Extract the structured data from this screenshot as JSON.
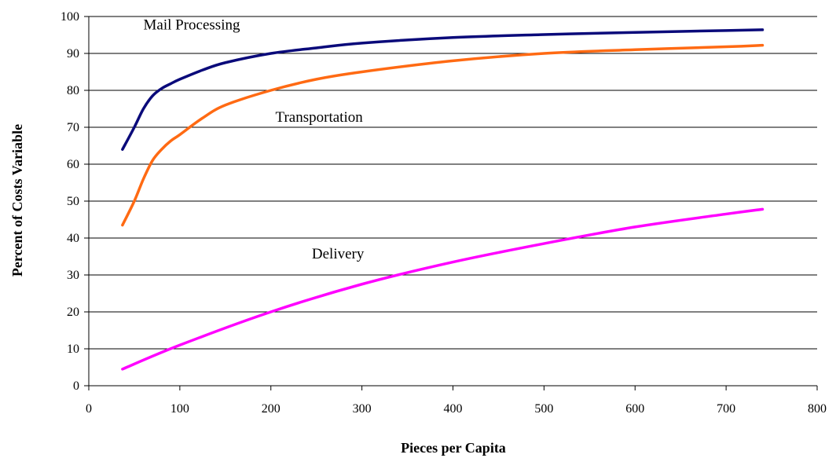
{
  "chart_data": {
    "type": "line",
    "title": "",
    "xlabel": "Pieces per Capita",
    "ylabel": "Percent of Costs Variable",
    "xlim": [
      0,
      800
    ],
    "ylim": [
      0,
      100
    ],
    "xticks": [
      0,
      100,
      200,
      300,
      400,
      500,
      600,
      700,
      800
    ],
    "yticks": [
      0,
      10,
      20,
      30,
      40,
      50,
      60,
      70,
      80,
      90,
      100
    ],
    "grid": "horizontal",
    "legend": "none",
    "series": [
      {
        "name": "Mail Processing",
        "color": "#0a0a7a",
        "x": [
          37,
          50,
          60,
          70,
          80,
          90,
          100,
          125,
          150,
          200,
          250,
          300,
          400,
          500,
          600,
          700,
          740
        ],
        "y": [
          64,
          70,
          75,
          78.5,
          80.5,
          81.8,
          83,
          85.5,
          87.5,
          90,
          91.5,
          92.8,
          94.3,
          95.1,
          95.7,
          96.2,
          96.4
        ]
      },
      {
        "name": "Transportation",
        "color": "#ff6a13",
        "x": [
          37,
          50,
          60,
          70,
          80,
          90,
          100,
          125,
          150,
          200,
          250,
          300,
          400,
          500,
          600,
          700,
          740
        ],
        "y": [
          43.5,
          50,
          56,
          61,
          64,
          66.3,
          68,
          72.5,
          76,
          80,
          83,
          85,
          88,
          90,
          91,
          91.8,
          92.2
        ]
      },
      {
        "name": "Delivery",
        "color": "#ff00ff",
        "x": [
          37,
          100,
          200,
          300,
          400,
          500,
          600,
          700,
          740
        ],
        "y": [
          4.5,
          11,
          20,
          27.5,
          33.5,
          38.5,
          43,
          46.5,
          47.8
        ]
      }
    ],
    "annotations": [
      {
        "text": "Mail Processing",
        "x": 60,
        "y": 96.5
      },
      {
        "text": "Transportation",
        "x": 205,
        "y": 71.5
      },
      {
        "text": "Delivery",
        "x": 245,
        "y": 34.5
      }
    ]
  }
}
